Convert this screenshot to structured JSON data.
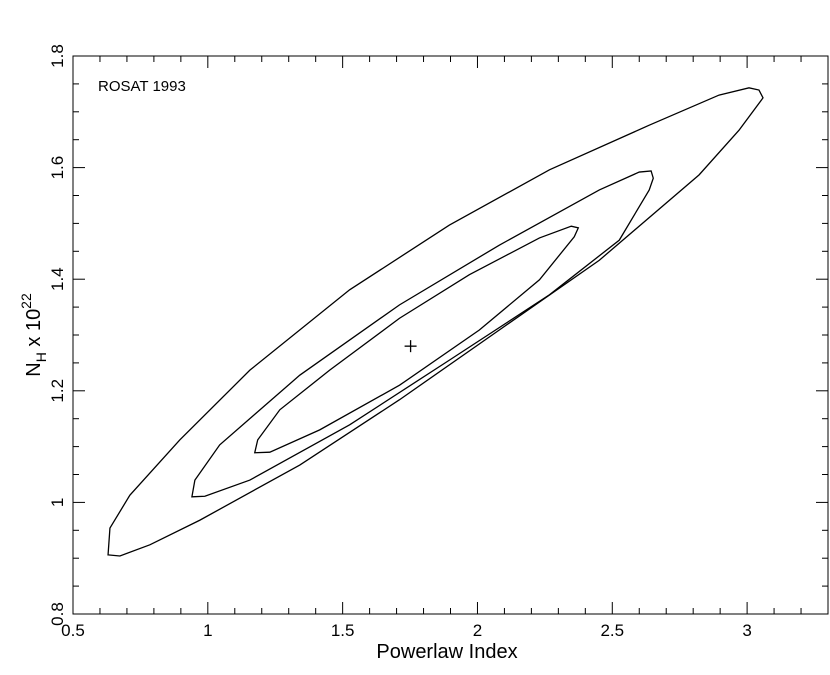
{
  "chart_data": {
    "type": "contour",
    "annotation": "ROSAT 1993",
    "xlabel": "Powerlaw Index",
    "ylabel": {
      "base": "N",
      "sub": "H",
      "mid": " x 10",
      "sup": "22"
    },
    "xlim": [
      0.5,
      3.3
    ],
    "ylim": [
      0.8,
      1.8
    ],
    "xticks": [
      0.5,
      1,
      1.5,
      2,
      2.5,
      3
    ],
    "yticks": [
      0.8,
      1,
      1.2,
      1.4,
      1.6,
      1.8
    ],
    "xminorticks": [
      0.6,
      0.7,
      0.8,
      0.9,
      1.1,
      1.2,
      1.3,
      1.4,
      1.6,
      1.7,
      1.8,
      1.9,
      2.1,
      2.2,
      2.3,
      2.4,
      2.6,
      2.7,
      2.8,
      2.9,
      3.1,
      3.2
    ],
    "yminorticks": [
      0.85,
      0.9,
      0.95,
      1.05,
      1.1,
      1.15,
      1.25,
      1.3,
      1.35,
      1.45,
      1.5,
      1.55,
      1.65,
      1.7,
      1.75
    ],
    "series": [
      {
        "color": "#000000",
        "x": [
          0.63,
          0.674,
          0.785,
          0.97,
          1.341,
          1.711,
          2.081,
          2.452,
          2.822,
          2.97,
          3.059,
          3.044,
          3.007,
          2.896,
          2.637,
          2.267,
          1.896,
          1.526,
          1.156,
          0.896,
          0.711,
          0.637
        ],
        "y": [
          0.906,
          0.904,
          0.924,
          0.968,
          1.067,
          1.184,
          1.309,
          1.434,
          1.587,
          1.667,
          1.725,
          1.739,
          1.743,
          1.73,
          1.676,
          1.596,
          1.497,
          1.381,
          1.237,
          1.112,
          1.013,
          0.954
        ]
      },
      {
        "color": "#000000",
        "x": [
          0.941,
          0.989,
          1.156,
          1.526,
          1.896,
          2.267,
          2.526,
          2.637,
          2.652,
          2.644,
          2.6,
          2.452,
          2.081,
          1.711,
          1.341,
          1.044,
          0.952
        ],
        "y": [
          1.01,
          1.011,
          1.04,
          1.139,
          1.255,
          1.372,
          1.47,
          1.56,
          1.581,
          1.594,
          1.592,
          1.56,
          1.461,
          1.354,
          1.228,
          1.103,
          1.04
        ]
      },
      {
        "color": "#000000",
        "x": [
          1.174,
          1.23,
          1.415,
          1.711,
          2.007,
          2.23,
          2.359,
          2.374,
          2.348,
          2.23,
          1.97,
          1.711,
          1.452,
          1.267,
          1.185
        ],
        "y": [
          1.089,
          1.09,
          1.13,
          1.21,
          1.309,
          1.399,
          1.476,
          1.492,
          1.495,
          1.474,
          1.408,
          1.33,
          1.237,
          1.166,
          1.112
        ]
      }
    ],
    "best_fit": {
      "x": 1.752,
      "y": 1.28
    }
  }
}
